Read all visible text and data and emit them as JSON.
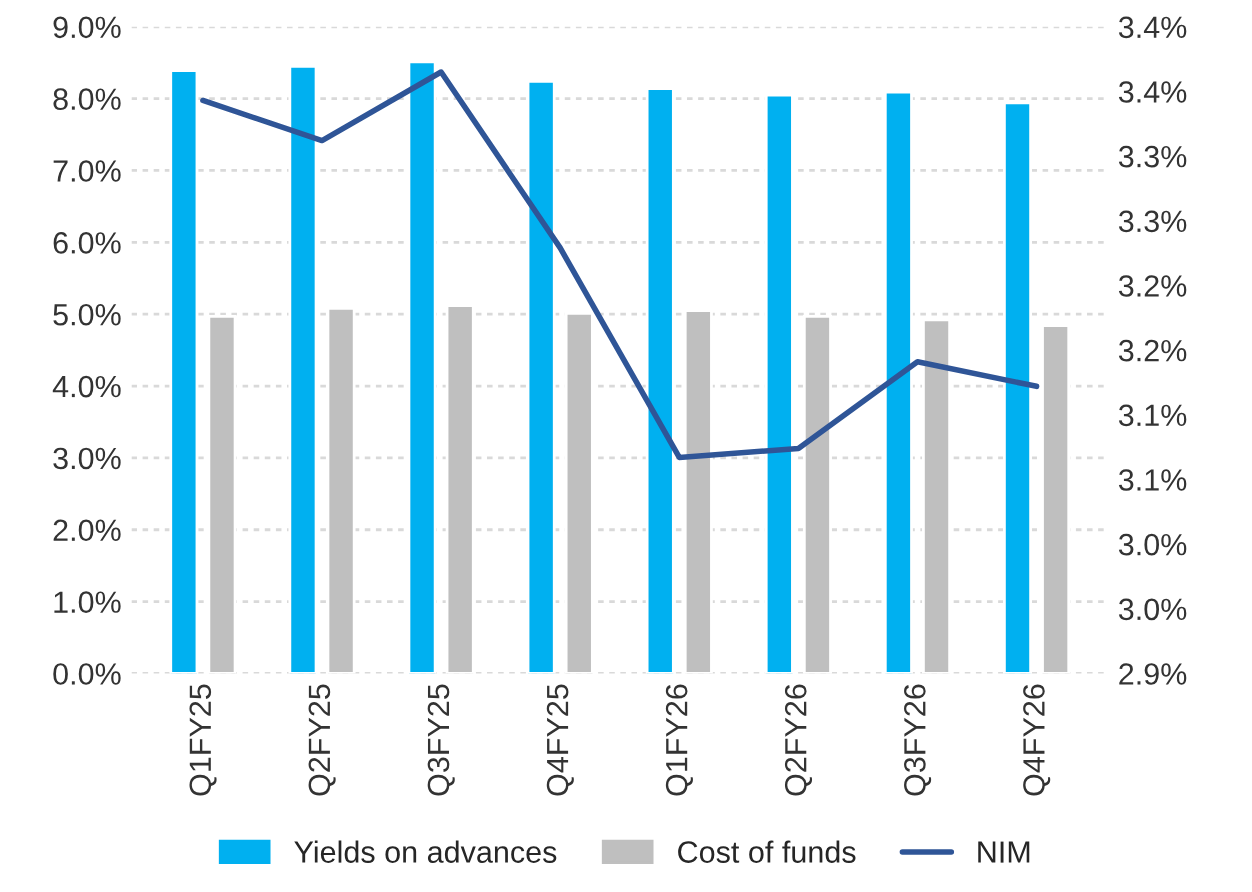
{
  "chart_data": {
    "type": "bar",
    "categories": [
      "Q1FY25",
      "Q2FY25",
      "Q3FY25",
      "Q4FY25",
      "Q1FY26",
      "Q2FY26",
      "Q3FY26",
      "Q4FY26"
    ],
    "series": [
      {
        "name": "Yields on advances",
        "color": "#00b0f0",
        "values": [
          8.39,
          8.45,
          8.51,
          8.24,
          8.14,
          8.05,
          8.09,
          7.94
        ]
      },
      {
        "name": "Cost of funds",
        "color": "#bfbfbf",
        "values": [
          4.97,
          5.08,
          5.12,
          5.01,
          5.05,
          4.97,
          4.92,
          4.84
        ]
      },
      {
        "name": "NIM",
        "type": "line",
        "axis": "y2",
        "color": "#2f5597",
        "values": [
          3.343,
          3.312,
          3.365,
          3.229,
          3.067,
          3.074,
          3.141,
          3.122
        ]
      }
    ],
    "ylim": [
      0,
      9
    ],
    "yticks": [
      {
        "value": 0,
        "label": "0.0%"
      },
      {
        "value": 1,
        "label": "1.0%"
      },
      {
        "value": 2,
        "label": "2.0%"
      },
      {
        "value": 3,
        "label": "3.0%"
      },
      {
        "value": 4,
        "label": "4.0%"
      },
      {
        "value": 5,
        "label": "5.0%"
      },
      {
        "value": 6,
        "label": "6.0%"
      },
      {
        "value": 7,
        "label": "7.0%"
      },
      {
        "value": 8,
        "label": "8.0%"
      },
      {
        "value": 9,
        "label": "9.0%"
      }
    ],
    "y2lim": [
      2.9,
      3.4
    ],
    "y2ticks": [
      {
        "value": 2.9,
        "label": "2.9%"
      },
      {
        "value": 2.95,
        "label": "3.0%"
      },
      {
        "value": 3.0,
        "label": "3.0%"
      },
      {
        "value": 3.05,
        "label": "3.1%"
      },
      {
        "value": 3.1,
        "label": "3.1%"
      },
      {
        "value": 3.15,
        "label": "3.2%"
      },
      {
        "value": 3.2,
        "label": "3.2%"
      },
      {
        "value": 3.25,
        "label": "3.3%"
      },
      {
        "value": 3.3,
        "label": "3.3%"
      },
      {
        "value": 3.35,
        "label": "3.4%"
      },
      {
        "value": 3.4,
        "label": "3.4%"
      }
    ],
    "grid": "y",
    "legend": "bottom",
    "line_style": "solid",
    "marker": "none"
  }
}
